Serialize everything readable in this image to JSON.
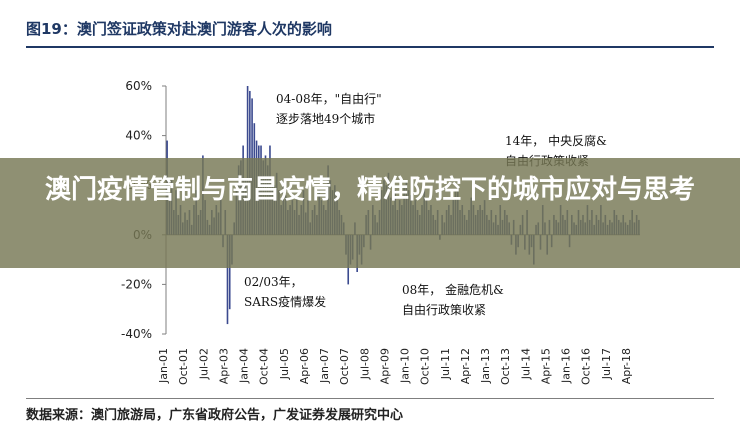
{
  "figure_title": "图19：澳门签证政策对赴澳门游客人次的影响",
  "headline": "澳门疫情管制与南昌疫情，精准防控下的城市应对与思考",
  "source": "数据来源：澳门旅游局，广东省政府公告，广发证券发展研究中心",
  "colors": {
    "bar": "#3b4a8f",
    "overlay": "#76784f",
    "title": "#1f3864"
  },
  "annotations": [
    {
      "lines": [
        "04-08年，\"自由行\"",
        "逐步落地49个城市"
      ]
    },
    {
      "lines": [
        "14年，  中央反腐&",
        "自由行政策收紧"
      ]
    },
    {
      "lines": [
        "02/03年，",
        "SARS疫情爆发"
      ]
    },
    {
      "lines": [
        "08年，  金融危机&",
        "自由行政策收紧"
      ]
    }
  ],
  "chart_data": {
    "type": "bar",
    "title": "图19：澳门签证政策对赴澳门游客人次的影响",
    "xlabel": "",
    "ylabel": "",
    "ylim": [
      -0.4,
      0.6
    ],
    "y_ticks": [
      "60%",
      "40%",
      "20%",
      "0%",
      "-20%",
      "-40%"
    ],
    "y_tick_values": [
      0.6,
      0.4,
      0.2,
      0.0,
      -0.2,
      -0.4
    ],
    "x_ticks": [
      "Jan-01",
      "Oct-01",
      "Jul-02",
      "Apr-03",
      "Jan-04",
      "Oct-04",
      "Jul-05",
      "Apr-06",
      "Jan-07",
      "Oct-07",
      "Jul-08",
      "Apr-09",
      "Jan-10",
      "Oct-10",
      "Jul-11",
      "Apr-12",
      "Jan-13",
      "Oct-13",
      "Jul-14",
      "Apr-15",
      "Jan-16",
      "Oct-16",
      "Jul-17",
      "Apr-18"
    ],
    "grid": false,
    "legend": "none",
    "series": [
      {
        "name": "",
        "start": "Jan-01",
        "frequency": "monthly",
        "values": [
          0.38,
          0.15,
          0.22,
          0.1,
          0.18,
          0.08,
          0.12,
          0.05,
          0.09,
          0.06,
          0.1,
          0.04,
          0.12,
          0.18,
          0.08,
          0.1,
          0.32,
          0.14,
          0.06,
          0.04,
          0.1,
          0.07,
          0.12,
          0.09,
          0.15,
          -0.05,
          0.1,
          -0.36,
          -0.3,
          -0.12,
          0.05,
          0.18,
          0.28,
          0.3,
          0.36,
          0.22,
          0.6,
          0.58,
          0.55,
          0.45,
          0.38,
          0.36,
          0.36,
          0.3,
          0.32,
          0.28,
          0.36,
          0.22,
          0.2,
          0.25,
          0.18,
          0.12,
          0.2,
          0.16,
          0.1,
          0.12,
          0.14,
          0.1,
          0.16,
          0.08,
          0.12,
          0.18,
          0.09,
          0.14,
          0.05,
          0.1,
          0.12,
          0.08,
          0.18,
          0.14,
          0.12,
          0.1,
          0.28,
          0.22,
          0.18,
          0.2,
          0.16,
          0.1,
          0.08,
          0.05,
          -0.08,
          -0.2,
          -0.12,
          -0.1,
          0.05,
          -0.15,
          -0.08,
          -0.12,
          -0.05,
          0.08,
          0.1,
          -0.06,
          0.12,
          0.08,
          0.05,
          0.1,
          0.18,
          0.22,
          0.2,
          0.25,
          0.15,
          0.12,
          0.18,
          0.1,
          0.14,
          0.12,
          0.2,
          0.22,
          0.18,
          0.16,
          0.12,
          0.14,
          0.1,
          0.08,
          0.12,
          0.2,
          0.15,
          0.1,
          0.12,
          0.08,
          0.06,
          0.1,
          -0.02,
          0.08,
          0.05,
          0.1,
          0.12,
          0.08,
          0.14,
          0.18,
          0.2,
          0.1,
          0.12,
          0.08,
          0.06,
          0.1,
          0.15,
          0.12,
          0.08,
          0.1,
          0.12,
          0.1,
          0.14,
          0.08,
          0.06,
          0.1,
          0.05,
          0.08,
          0.04,
          0.12,
          0.06,
          0.1,
          0.08,
          0.05,
          -0.04,
          0.06,
          -0.08,
          -0.05,
          0.04,
          0.08,
          -0.06,
          0.1,
          -0.08,
          -0.05,
          -0.12,
          0.04,
          0.05,
          -0.06,
          0.12,
          0.05,
          -0.08,
          0.06,
          -0.05,
          0.08,
          0.06,
          0.05,
          0.12,
          0.08,
          0.06,
          0.1,
          -0.05,
          0.08,
          0.05,
          0.04,
          0.1,
          0.06,
          0.08,
          0.05,
          0.12,
          0.06,
          0.1,
          0.04,
          0.08,
          0.06,
          0.12,
          0.05,
          0.08,
          0.04,
          0.06,
          0.05,
          0.1,
          0.08,
          0.06,
          0.05,
          0.08,
          0.05,
          0.04,
          0.06,
          0.1,
          0.05,
          0.08,
          0.06
        ]
      }
    ]
  }
}
